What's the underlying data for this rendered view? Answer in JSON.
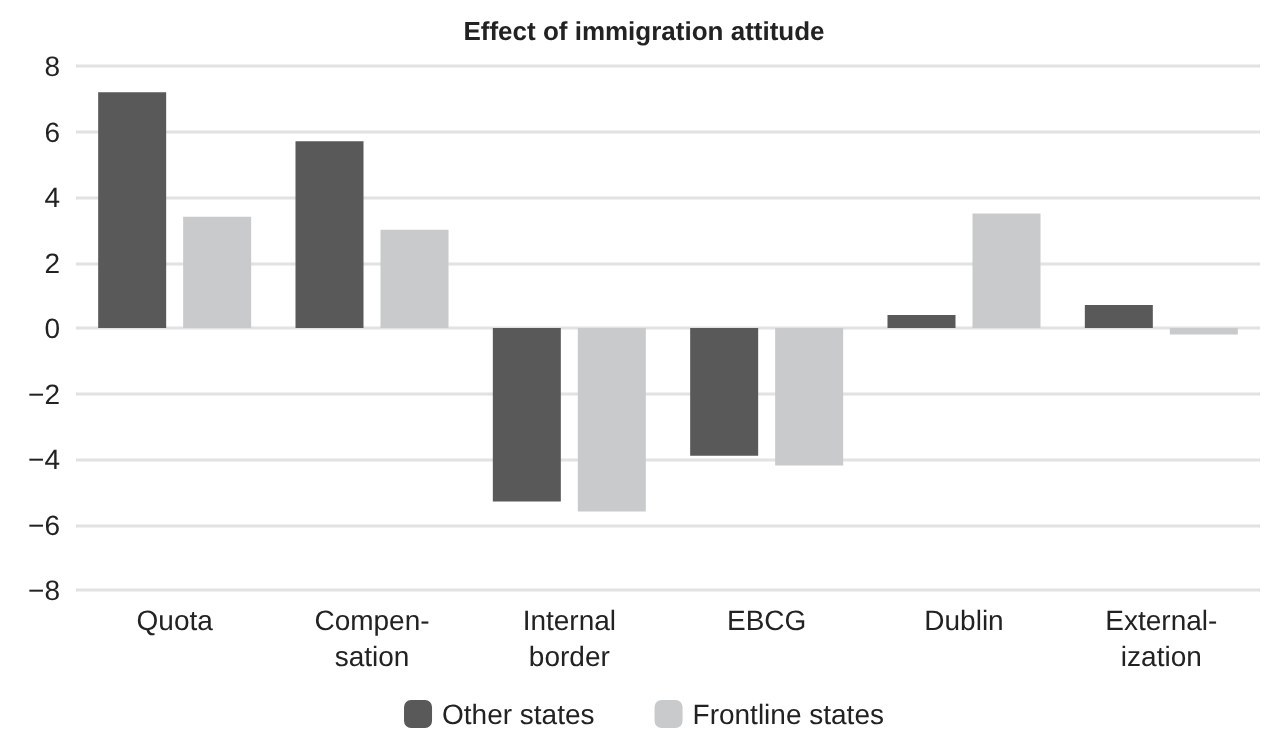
{
  "chart_data": {
    "type": "bar",
    "title": "Effect of immigration attitude",
    "categories": [
      "Quota",
      "Compen-\nsation",
      "Internal\nborder",
      "EBCG",
      "Dublin",
      "External-\nization"
    ],
    "series": [
      {
        "name": "Other states",
        "color": "#595959",
        "values": [
          7.2,
          5.7,
          -5.3,
          -3.9,
          0.4,
          0.7
        ]
      },
      {
        "name": "Frontline states",
        "color": "#c9cacb",
        "values": [
          3.4,
          3.0,
          -5.6,
          -4.2,
          3.5,
          -0.2
        ]
      }
    ],
    "ylim": [
      -8,
      8
    ],
    "yticks": [
      -8,
      -6,
      -4,
      -2,
      0,
      2,
      4,
      6,
      8
    ],
    "grid": "y",
    "legend": "bottom"
  }
}
